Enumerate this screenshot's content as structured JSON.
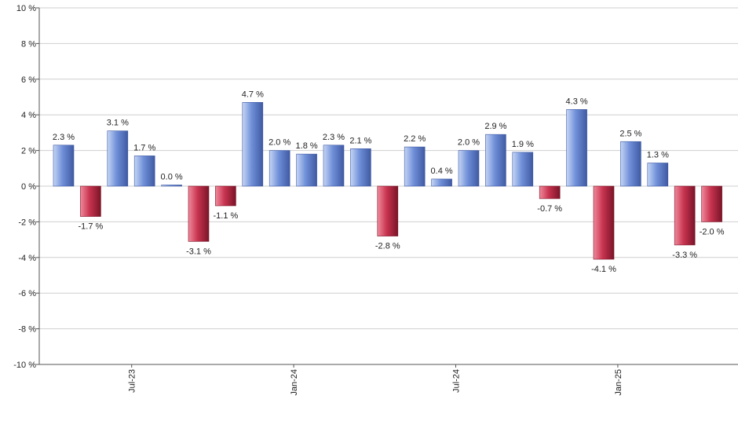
{
  "chart_data": {
    "type": "bar",
    "ylim": [
      -10,
      10
    ],
    "y_ticks": [
      10,
      8,
      6,
      4,
      2,
      0,
      -2,
      -4,
      -6,
      -8,
      -10
    ],
    "y_tick_labels": [
      "10 %",
      "8 %",
      "6 %",
      "4 %",
      "2 %",
      "0 %",
      "-2 %",
      "-4 %",
      "-6 %",
      "-8 %",
      "-10 %"
    ],
    "x_tick_labels": [
      {
        "label": "Jul-23",
        "after_bar": 3
      },
      {
        "label": "Jan-24",
        "after_bar": 9
      },
      {
        "label": "Jul-24",
        "after_bar": 15
      },
      {
        "label": "Jan-25",
        "after_bar": 21
      }
    ],
    "values": [
      2.3,
      -1.7,
      3.1,
      1.7,
      0.0,
      -3.1,
      -1.1,
      4.7,
      2.0,
      1.8,
      2.3,
      2.1,
      -2.8,
      2.2,
      0.4,
      2.0,
      2.9,
      1.9,
      -0.7,
      4.3,
      -4.1,
      2.5,
      1.3,
      -3.3,
      -2.0
    ],
    "data_labels": [
      "2.3 %",
      "-1.7 %",
      "3.1 %",
      "1.7 %",
      "0.0 %",
      "-3.1 %",
      "-1.1 %",
      "4.7 %",
      "2.0 %",
      "1.8 %",
      "2.3 %",
      "2.1 %",
      "-2.8 %",
      "2.2 %",
      "0.4 %",
      "2.0 %",
      "2.9 %",
      "1.9 %",
      "-0.7 %",
      "4.3 %",
      "-4.1 %",
      "2.5 %",
      "1.3 %",
      "-3.3 %",
      "-2.0 %"
    ],
    "grid": true,
    "colors": {
      "positive": "#6f8fd8",
      "positive_light": "#c6d6f5",
      "positive_dark": "#3f5aa3",
      "negative": "#c8334f",
      "negative_light": "#f08a9c",
      "negative_dark": "#7a1428"
    }
  }
}
